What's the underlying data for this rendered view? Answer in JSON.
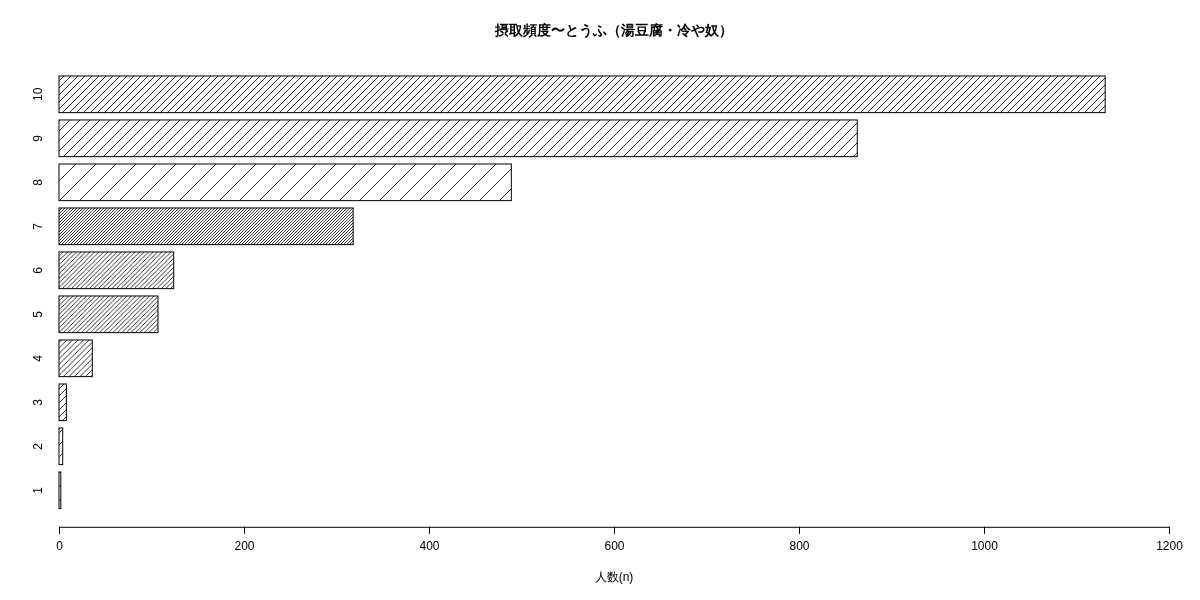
{
  "chart_data": {
    "type": "bar",
    "title": "摂取頻度〜とうふ（湯豆腐・冷や奴）",
    "xlabel": "人数(n)",
    "orientation": "horizontal",
    "categories": [
      "10",
      "9",
      "8",
      "7",
      "6",
      "5",
      "4",
      "3",
      "2",
      "1"
    ],
    "values": [
      1131,
      863,
      489,
      318,
      124,
      107,
      36,
      8,
      4,
      2
    ],
    "color": "#000000",
    "xlim": [
      0,
      1200
    ],
    "xticks": [
      0,
      200,
      400,
      600,
      800,
      1000,
      1200
    ]
  }
}
